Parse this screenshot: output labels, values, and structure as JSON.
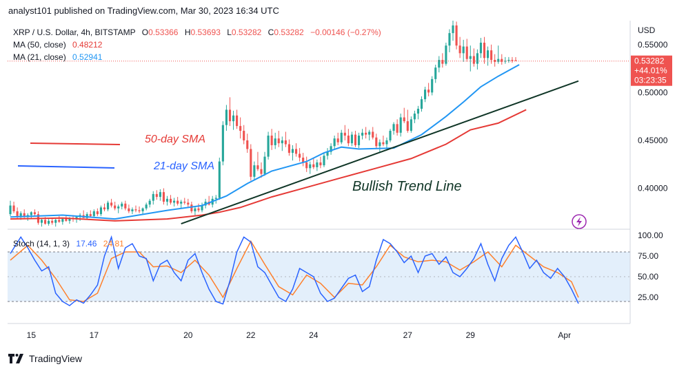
{
  "header": {
    "text": "analyst101 published on TradingView.com, Mar 30, 2023 16:34 UTC"
  },
  "footer": {
    "brand": "TradingView"
  },
  "legend": {
    "symbol": "XRP / U.S. Dollar, 4h, BITSTAMP",
    "o_label": "O",
    "o_value": "0.53366",
    "h_label": "H",
    "h_value": "0.53693",
    "l_label": "L",
    "l_value": "0.53282",
    "c_label": "C",
    "c_value": "0.53282",
    "change": "−0.00146 (−0.27%)",
    "ma50_label": "MA (50, close)",
    "ma50_value": "0.48212",
    "ma21_label": "MA (21, close)",
    "ma21_value": "0.52941"
  },
  "annotations": {
    "sma50": "50-day SMA",
    "sma21": "21-day SMA",
    "trendline": "Bullish Trend Line"
  },
  "price_axis": {
    "currency": "USD",
    "ticks": [
      "0.55000",
      "0.50000",
      "0.45000",
      "0.40000"
    ],
    "last_price": "0.53282",
    "last_change": "+44.01%",
    "countdown": "03:23:35"
  },
  "stoch": {
    "label": "Stoch (14, 1, 3)",
    "k_value": "17.46",
    "d_value": "24.81",
    "ticks": [
      "100.00",
      "75.00",
      "50.00",
      "25.00"
    ],
    "band": [
      20,
      80
    ]
  },
  "time_axis": {
    "ticks": [
      "15",
      "17",
      "20",
      "22",
      "24",
      "27",
      "29",
      "Apr"
    ]
  },
  "colors": {
    "up": "#26a69a",
    "down": "#ef5350",
    "ma50": "#e53935",
    "ma21": "#2196f3",
    "stoch_k": "#2962ff",
    "stoch_d": "#ff7f2a",
    "trend": "#0f3526",
    "band_fill": "#e3effb"
  },
  "chart_data": {
    "type": "candlestick",
    "title": "XRP / U.S. Dollar, 4h, BITSTAMP",
    "ylim": [
      0.358,
      0.575
    ],
    "x_range": [
      0,
      163
    ],
    "candles": [
      [
        0.373,
        0.387,
        0.371,
        0.382
      ],
      [
        0.382,
        0.386,
        0.374,
        0.376
      ],
      [
        0.376,
        0.38,
        0.368,
        0.371
      ],
      [
        0.371,
        0.376,
        0.367,
        0.374
      ],
      [
        0.374,
        0.378,
        0.369,
        0.37
      ],
      [
        0.37,
        0.374,
        0.366,
        0.372
      ],
      [
        0.372,
        0.376,
        0.369,
        0.375
      ],
      [
        0.375,
        0.378,
        0.371,
        0.373
      ],
      [
        0.373,
        0.376,
        0.362,
        0.364
      ],
      [
        0.364,
        0.369,
        0.36,
        0.367
      ],
      [
        0.367,
        0.37,
        0.362,
        0.363
      ],
      [
        0.363,
        0.368,
        0.361,
        0.366
      ],
      [
        0.366,
        0.369,
        0.362,
        0.364
      ],
      [
        0.364,
        0.368,
        0.36,
        0.367
      ],
      [
        0.367,
        0.371,
        0.364,
        0.365
      ],
      [
        0.365,
        0.369,
        0.362,
        0.368
      ],
      [
        0.368,
        0.372,
        0.365,
        0.366
      ],
      [
        0.366,
        0.37,
        0.363,
        0.369
      ],
      [
        0.369,
        0.372,
        0.365,
        0.368
      ],
      [
        0.368,
        0.371,
        0.364,
        0.37
      ],
      [
        0.37,
        0.374,
        0.366,
        0.372
      ],
      [
        0.372,
        0.377,
        0.369,
        0.369
      ],
      [
        0.369,
        0.375,
        0.367,
        0.373
      ],
      [
        0.373,
        0.377,
        0.37,
        0.371
      ],
      [
        0.371,
        0.378,
        0.369,
        0.376
      ],
      [
        0.376,
        0.379,
        0.371,
        0.373
      ],
      [
        0.373,
        0.382,
        0.371,
        0.38
      ],
      [
        0.38,
        0.384,
        0.376,
        0.378
      ],
      [
        0.378,
        0.387,
        0.376,
        0.385
      ],
      [
        0.385,
        0.389,
        0.38,
        0.382
      ],
      [
        0.382,
        0.386,
        0.377,
        0.379
      ],
      [
        0.379,
        0.383,
        0.374,
        0.381
      ],
      [
        0.381,
        0.386,
        0.378,
        0.384
      ],
      [
        0.384,
        0.387,
        0.377,
        0.379
      ],
      [
        0.379,
        0.383,
        0.374,
        0.376
      ],
      [
        0.376,
        0.38,
        0.373,
        0.378
      ],
      [
        0.378,
        0.382,
        0.375,
        0.377
      ],
      [
        0.377,
        0.381,
        0.374,
        0.376
      ],
      [
        0.376,
        0.38,
        0.373,
        0.379
      ],
      [
        0.379,
        0.385,
        0.377,
        0.383
      ],
      [
        0.383,
        0.389,
        0.38,
        0.387
      ],
      [
        0.387,
        0.397,
        0.383,
        0.394
      ],
      [
        0.394,
        0.398,
        0.388,
        0.391
      ],
      [
        0.391,
        0.399,
        0.387,
        0.396
      ],
      [
        0.396,
        0.4,
        0.383,
        0.386
      ],
      [
        0.386,
        0.392,
        0.382,
        0.389
      ],
      [
        0.389,
        0.393,
        0.383,
        0.385
      ],
      [
        0.385,
        0.39,
        0.381,
        0.387
      ],
      [
        0.387,
        0.391,
        0.382,
        0.384
      ],
      [
        0.384,
        0.388,
        0.379,
        0.386
      ],
      [
        0.386,
        0.39,
        0.383,
        0.385
      ],
      [
        0.385,
        0.389,
        0.38,
        0.383
      ],
      [
        0.383,
        0.386,
        0.374,
        0.376
      ],
      [
        0.376,
        0.381,
        0.372,
        0.379
      ],
      [
        0.379,
        0.384,
        0.375,
        0.377
      ],
      [
        0.377,
        0.385,
        0.375,
        0.382
      ],
      [
        0.382,
        0.389,
        0.379,
        0.386
      ],
      [
        0.386,
        0.392,
        0.382,
        0.383
      ],
      [
        0.383,
        0.392,
        0.38,
        0.389
      ],
      [
        0.389,
        0.393,
        0.384,
        0.39
      ],
      [
        0.39,
        0.432,
        0.388,
        0.428
      ],
      [
        0.428,
        0.47,
        0.424,
        0.466
      ],
      [
        0.466,
        0.487,
        0.46,
        0.482
      ],
      [
        0.482,
        0.495,
        0.465,
        0.47
      ],
      [
        0.47,
        0.481,
        0.461,
        0.476
      ],
      [
        0.476,
        0.482,
        0.462,
        0.465
      ],
      [
        0.465,
        0.474,
        0.452,
        0.46
      ],
      [
        0.46,
        0.466,
        0.446,
        0.45
      ],
      [
        0.45,
        0.457,
        0.437,
        0.441
      ],
      [
        0.441,
        0.446,
        0.408,
        0.412
      ],
      [
        0.412,
        0.428,
        0.409,
        0.424
      ],
      [
        0.424,
        0.438,
        0.418,
        0.42
      ],
      [
        0.42,
        0.427,
        0.411,
        0.415
      ],
      [
        0.415,
        0.438,
        0.413,
        0.433
      ],
      [
        0.433,
        0.459,
        0.43,
        0.455
      ],
      [
        0.455,
        0.462,
        0.44,
        0.445
      ],
      [
        0.445,
        0.458,
        0.441,
        0.452
      ],
      [
        0.452,
        0.46,
        0.443,
        0.447
      ],
      [
        0.447,
        0.454,
        0.439,
        0.45
      ],
      [
        0.45,
        0.459,
        0.443,
        0.446
      ],
      [
        0.446,
        0.451,
        0.434,
        0.437
      ],
      [
        0.437,
        0.445,
        0.429,
        0.441
      ],
      [
        0.441,
        0.447,
        0.433,
        0.436
      ],
      [
        0.436,
        0.442,
        0.428,
        0.432
      ],
      [
        0.432,
        0.437,
        0.423,
        0.427
      ],
      [
        0.427,
        0.433,
        0.417,
        0.421
      ],
      [
        0.421,
        0.428,
        0.415,
        0.425
      ],
      [
        0.425,
        0.432,
        0.42,
        0.422
      ],
      [
        0.422,
        0.43,
        0.418,
        0.427
      ],
      [
        0.427,
        0.433,
        0.421,
        0.424
      ],
      [
        0.424,
        0.437,
        0.422,
        0.434
      ],
      [
        0.434,
        0.442,
        0.43,
        0.438
      ],
      [
        0.438,
        0.447,
        0.435,
        0.444
      ],
      [
        0.444,
        0.455,
        0.44,
        0.452
      ],
      [
        0.452,
        0.458,
        0.445,
        0.448
      ],
      [
        0.448,
        0.461,
        0.446,
        0.458
      ],
      [
        0.458,
        0.466,
        0.45,
        0.455
      ],
      [
        0.455,
        0.462,
        0.444,
        0.447
      ],
      [
        0.447,
        0.459,
        0.444,
        0.456
      ],
      [
        0.456,
        0.46,
        0.443,
        0.445
      ],
      [
        0.445,
        0.458,
        0.442,
        0.455
      ],
      [
        0.455,
        0.462,
        0.451,
        0.458
      ],
      [
        0.458,
        0.464,
        0.452,
        0.456
      ],
      [
        0.456,
        0.461,
        0.45,
        0.459
      ],
      [
        0.459,
        0.464,
        0.451,
        0.453
      ],
      [
        0.453,
        0.457,
        0.441,
        0.444
      ],
      [
        0.444,
        0.451,
        0.438,
        0.448
      ],
      [
        0.448,
        0.455,
        0.444,
        0.446
      ],
      [
        0.446,
        0.453,
        0.441,
        0.45
      ],
      [
        0.45,
        0.462,
        0.448,
        0.46
      ],
      [
        0.46,
        0.469,
        0.456,
        0.467
      ],
      [
        0.467,
        0.472,
        0.455,
        0.458
      ],
      [
        0.458,
        0.478,
        0.454,
        0.474
      ],
      [
        0.474,
        0.484,
        0.468,
        0.47
      ],
      [
        0.47,
        0.482,
        0.458,
        0.46
      ],
      [
        0.46,
        0.475,
        0.458,
        0.472
      ],
      [
        0.472,
        0.481,
        0.468,
        0.478
      ],
      [
        0.478,
        0.486,
        0.472,
        0.483
      ],
      [
        0.483,
        0.496,
        0.48,
        0.493
      ],
      [
        0.493,
        0.506,
        0.49,
        0.503
      ],
      [
        0.503,
        0.51,
        0.496,
        0.5
      ],
      [
        0.5,
        0.517,
        0.497,
        0.514
      ],
      [
        0.514,
        0.529,
        0.51,
        0.526
      ],
      [
        0.526,
        0.538,
        0.521,
        0.534
      ],
      [
        0.534,
        0.541,
        0.526,
        0.53
      ],
      [
        0.53,
        0.552,
        0.528,
        0.549
      ],
      [
        0.549,
        0.566,
        0.542,
        0.562
      ],
      [
        0.562,
        0.575,
        0.554,
        0.57
      ],
      [
        0.57,
        0.574,
        0.545,
        0.549
      ],
      [
        0.549,
        0.558,
        0.536,
        0.541
      ],
      [
        0.541,
        0.555,
        0.532,
        0.548
      ],
      [
        0.548,
        0.556,
        0.532,
        0.535
      ],
      [
        0.535,
        0.549,
        0.522,
        0.538
      ],
      [
        0.538,
        0.546,
        0.527,
        0.53
      ],
      [
        0.53,
        0.545,
        0.524,
        0.541
      ],
      [
        0.541,
        0.557,
        0.536,
        0.552
      ],
      [
        0.552,
        0.558,
        0.53,
        0.536
      ],
      [
        0.536,
        0.548,
        0.528,
        0.544
      ],
      [
        0.544,
        0.55,
        0.53,
        0.534
      ],
      [
        0.534,
        0.54,
        0.527,
        0.532
      ],
      [
        0.532,
        0.549,
        0.53,
        0.535
      ],
      [
        0.535,
        0.54,
        0.529,
        0.532
      ],
      [
        0.533,
        0.537,
        0.53,
        0.533
      ],
      [
        0.533,
        0.537,
        0.531,
        0.534
      ],
      [
        0.534,
        0.537,
        0.531,
        0.533
      ],
      [
        0.53366,
        0.53693,
        0.53282,
        0.53282
      ]
    ],
    "ma21": [
      [
        0,
        0.37
      ],
      [
        15,
        0.372
      ],
      [
        30,
        0.368
      ],
      [
        45,
        0.377
      ],
      [
        55,
        0.382
      ],
      [
        62,
        0.392
      ],
      [
        68,
        0.405
      ],
      [
        75,
        0.418
      ],
      [
        85,
        0.428
      ],
      [
        90,
        0.437
      ],
      [
        95,
        0.443
      ],
      [
        100,
        0.441
      ],
      [
        110,
        0.442
      ],
      [
        118,
        0.456
      ],
      [
        125,
        0.475
      ],
      [
        130,
        0.49
      ],
      [
        135,
        0.506
      ],
      [
        140,
        0.517
      ],
      [
        146,
        0.529
      ]
    ],
    "ma50": [
      [
        0,
        0.368
      ],
      [
        15,
        0.369
      ],
      [
        30,
        0.366
      ],
      [
        45,
        0.368
      ],
      [
        55,
        0.372
      ],
      [
        60,
        0.375
      ],
      [
        66,
        0.38
      ],
      [
        75,
        0.391
      ],
      [
        85,
        0.401
      ],
      [
        95,
        0.411
      ],
      [
        105,
        0.421
      ],
      [
        115,
        0.431
      ],
      [
        125,
        0.446
      ],
      [
        132,
        0.461
      ],
      [
        140,
        0.468
      ],
      [
        148,
        0.482
      ]
    ],
    "stoch_k": [
      [
        0,
        78
      ],
      [
        3,
        98
      ],
      [
        5,
        85
      ],
      [
        7,
        70
      ],
      [
        9,
        57
      ],
      [
        11,
        62
      ],
      [
        13,
        30
      ],
      [
        15,
        20
      ],
      [
        17,
        15
      ],
      [
        19,
        22
      ],
      [
        21,
        18
      ],
      [
        23,
        28
      ],
      [
        25,
        40
      ],
      [
        27,
        75
      ],
      [
        29,
        98
      ],
      [
        31,
        60
      ],
      [
        33,
        85
      ],
      [
        35,
        90
      ],
      [
        37,
        75
      ],
      [
        39,
        72
      ],
      [
        41,
        45
      ],
      [
        43,
        65
      ],
      [
        45,
        70
      ],
      [
        47,
        55
      ],
      [
        49,
        45
      ],
      [
        51,
        70
      ],
      [
        53,
        78
      ],
      [
        55,
        55
      ],
      [
        57,
        35
      ],
      [
        59,
        20
      ],
      [
        61,
        17
      ],
      [
        63,
        45
      ],
      [
        65,
        80
      ],
      [
        67,
        98
      ],
      [
        69,
        92
      ],
      [
        71,
        62
      ],
      [
        73,
        55
      ],
      [
        75,
        40
      ],
      [
        77,
        25
      ],
      [
        79,
        20
      ],
      [
        81,
        35
      ],
      [
        83,
        60
      ],
      [
        85,
        55
      ],
      [
        87,
        50
      ],
      [
        89,
        30
      ],
      [
        91,
        20
      ],
      [
        93,
        24
      ],
      [
        95,
        36
      ],
      [
        97,
        48
      ],
      [
        99,
        52
      ],
      [
        101,
        32
      ],
      [
        103,
        38
      ],
      [
        105,
        70
      ],
      [
        107,
        95
      ],
      [
        109,
        90
      ],
      [
        111,
        80
      ],
      [
        113,
        67
      ],
      [
        115,
        75
      ],
      [
        117,
        55
      ],
      [
        119,
        75
      ],
      [
        121,
        78
      ],
      [
        123,
        65
      ],
      [
        125,
        74
      ],
      [
        127,
        55
      ],
      [
        129,
        50
      ],
      [
        131,
        60
      ],
      [
        133,
        72
      ],
      [
        135,
        90
      ],
      [
        137,
        65
      ],
      [
        139,
        45
      ],
      [
        141,
        72
      ],
      [
        143,
        88
      ],
      [
        145,
        98
      ],
      [
        147,
        80
      ],
      [
        149,
        60
      ],
      [
        151,
        70
      ],
      [
        153,
        55
      ],
      [
        155,
        48
      ],
      [
        157,
        60
      ],
      [
        159,
        50
      ],
      [
        161,
        35
      ],
      [
        163,
        17.46
      ]
    ],
    "stoch_d": [
      [
        0,
        70
      ],
      [
        5,
        88
      ],
      [
        9,
        70
      ],
      [
        13,
        48
      ],
      [
        17,
        22
      ],
      [
        21,
        20
      ],
      [
        25,
        30
      ],
      [
        29,
        72
      ],
      [
        33,
        80
      ],
      [
        37,
        80
      ],
      [
        41,
        62
      ],
      [
        45,
        63
      ],
      [
        49,
        55
      ],
      [
        53,
        70
      ],
      [
        57,
        52
      ],
      [
        61,
        25
      ],
      [
        65,
        60
      ],
      [
        69,
        93
      ],
      [
        73,
        65
      ],
      [
        77,
        38
      ],
      [
        81,
        28
      ],
      [
        85,
        52
      ],
      [
        89,
        42
      ],
      [
        93,
        25
      ],
      [
        97,
        42
      ],
      [
        101,
        40
      ],
      [
        105,
        62
      ],
      [
        109,
        88
      ],
      [
        113,
        74
      ],
      [
        117,
        68
      ],
      [
        121,
        70
      ],
      [
        125,
        68
      ],
      [
        129,
        58
      ],
      [
        133,
        68
      ],
      [
        137,
        80
      ],
      [
        141,
        62
      ],
      [
        145,
        88
      ],
      [
        149,
        75
      ],
      [
        153,
        62
      ],
      [
        157,
        55
      ],
      [
        161,
        44
      ],
      [
        163,
        24.81
      ]
    ],
    "stoch_ylim": [
      0,
      100
    ],
    "trend_line": [
      [
        49,
        0.363
      ],
      [
        163,
        0.512
      ]
    ]
  }
}
